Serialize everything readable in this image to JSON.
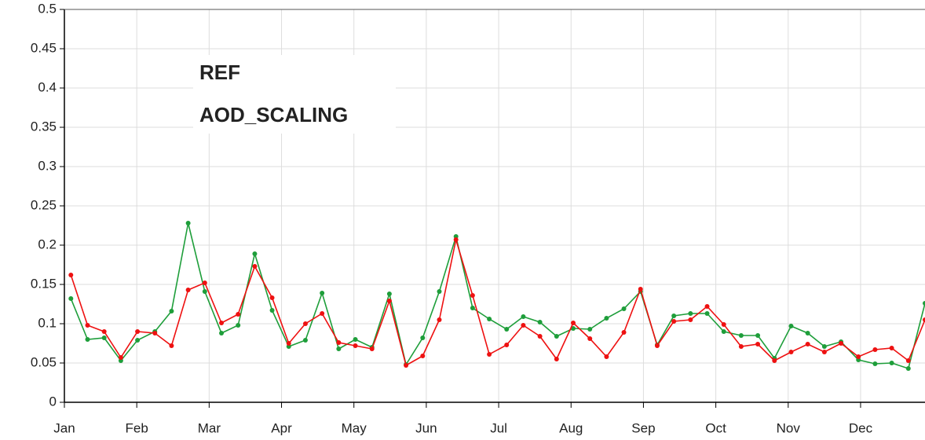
{
  "chart_data": {
    "type": "line",
    "x": [
      0.09,
      0.32,
      0.55,
      0.78,
      1.01,
      1.25,
      1.48,
      1.71,
      1.94,
      2.17,
      2.4,
      2.63,
      2.87,
      3.1,
      3.33,
      3.56,
      3.79,
      4.02,
      4.25,
      4.49,
      4.72,
      4.95,
      5.18,
      5.41,
      5.64,
      5.87,
      6.11,
      6.34,
      6.57,
      6.8,
      7.03,
      7.26,
      7.49,
      7.73,
      7.96,
      8.19,
      8.42,
      8.65,
      8.88,
      9.11,
      9.35,
      9.58,
      9.81,
      10.04,
      10.27,
      10.5,
      10.73,
      10.97,
      11.2,
      11.43,
      11.66,
      11.89
    ],
    "series": [
      {
        "name": "REF",
        "color": "#1e9e3a",
        "values": [
          0.132,
          0.08,
          0.082,
          0.053,
          0.079,
          0.09,
          0.116,
          0.228,
          0.141,
          0.088,
          0.098,
          0.189,
          0.117,
          0.071,
          0.079,
          0.139,
          0.068,
          0.08,
          0.07,
          0.138,
          0.048,
          0.082,
          0.141,
          0.211,
          0.12,
          0.106,
          0.093,
          0.109,
          0.102,
          0.084,
          0.094,
          0.093,
          0.107,
          0.119,
          0.141,
          0.073,
          0.11,
          0.113,
          0.113,
          0.09,
          0.085,
          0.085,
          0.056,
          0.097,
          0.088,
          0.071,
          0.077,
          0.054,
          0.049,
          0.05,
          0.043,
          0.126
        ]
      },
      {
        "name": "AOD_SCALING",
        "color": "#ee1111",
        "values": [
          0.162,
          0.098,
          0.09,
          0.057,
          0.09,
          0.088,
          0.072,
          0.143,
          0.152,
          0.101,
          0.112,
          0.173,
          0.133,
          0.075,
          0.1,
          0.113,
          0.076,
          0.072,
          0.068,
          0.129,
          0.047,
          0.059,
          0.105,
          0.207,
          0.136,
          0.061,
          0.073,
          0.098,
          0.084,
          0.055,
          0.101,
          0.081,
          0.058,
          0.089,
          0.144,
          0.072,
          0.103,
          0.105,
          0.122,
          0.099,
          0.071,
          0.074,
          0.053,
          0.064,
          0.074,
          0.064,
          0.075,
          0.058,
          0.067,
          0.069,
          0.053,
          0.105
        ]
      }
    ],
    "xlim": [
      0,
      11.89
    ],
    "xticks": [
      {
        "value": 0,
        "label": "Jan"
      },
      {
        "value": 1,
        "label": "Feb"
      },
      {
        "value": 2,
        "label": "Mar"
      },
      {
        "value": 3,
        "label": "Apr"
      },
      {
        "value": 4,
        "label": "May"
      },
      {
        "value": 5,
        "label": "Jun"
      },
      {
        "value": 6,
        "label": "Jul"
      },
      {
        "value": 7,
        "label": "Aug"
      },
      {
        "value": 8,
        "label": "Sep"
      },
      {
        "value": 9,
        "label": "Oct"
      },
      {
        "value": 10,
        "label": "Nov"
      },
      {
        "value": 11,
        "label": "Dec"
      }
    ],
    "ylim": [
      0,
      0.5
    ],
    "yticks": [
      0,
      0.05,
      0.1,
      0.15,
      0.2,
      0.25,
      0.3,
      0.35,
      0.4,
      0.45,
      0.5
    ],
    "grid": true
  }
}
